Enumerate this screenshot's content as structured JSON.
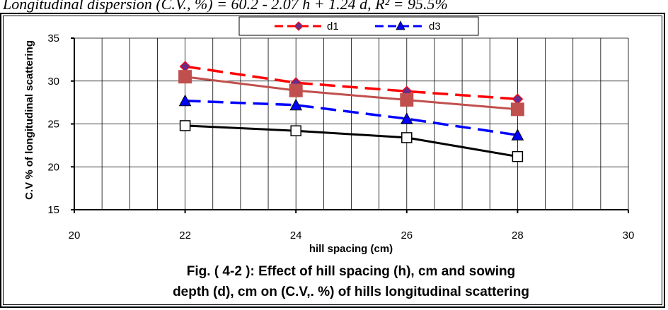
{
  "header_text": "Longitudinal dispersion (C.V., %) = 60.2 - 2.07 h + 1.24 d,   R² = 95.5%",
  "chart_data": {
    "type": "line",
    "x": [
      22,
      24,
      26,
      28
    ],
    "xlabel": "hill spacing (cm)",
    "ylabel": "C.V % of longitudinal scattering",
    "xlim": [
      20,
      30
    ],
    "ylim": [
      15,
      35
    ],
    "xticks": [
      20,
      22,
      24,
      26,
      28,
      30
    ],
    "yticks": [
      15,
      20,
      25,
      30,
      35
    ],
    "grid": true,
    "legend_position": "top",
    "series": [
      {
        "name": "d1",
        "values": [
          31.7,
          29.8,
          28.8,
          27.9
        ],
        "color": "#ff0000",
        "dash": "dashed",
        "marker": "diamond",
        "marker_color": "#6a2c8a"
      },
      {
        "name": "",
        "values": [
          30.5,
          28.9,
          27.8,
          26.7
        ],
        "color": "#c0504d",
        "dash": "solid",
        "marker": "square-filled",
        "marker_color": "#c0504d"
      },
      {
        "name": "d3",
        "values": [
          27.7,
          27.2,
          25.6,
          23.7
        ],
        "color": "#0000ff",
        "dash": "dashed",
        "marker": "triangle",
        "marker_color": "#0000ff"
      },
      {
        "name": "",
        "values": [
          24.8,
          24.2,
          23.4,
          21.2
        ],
        "color": "#000000",
        "dash": "solid",
        "marker": "square-open",
        "marker_color": "#000000"
      }
    ],
    "caption_line1": "Fig. ( 4-2 ): Effect of hill spacing (h), cm and sowing",
    "caption_line2": "depth (d), cm on  (C.V,. %) of hills longitudinal scattering"
  }
}
